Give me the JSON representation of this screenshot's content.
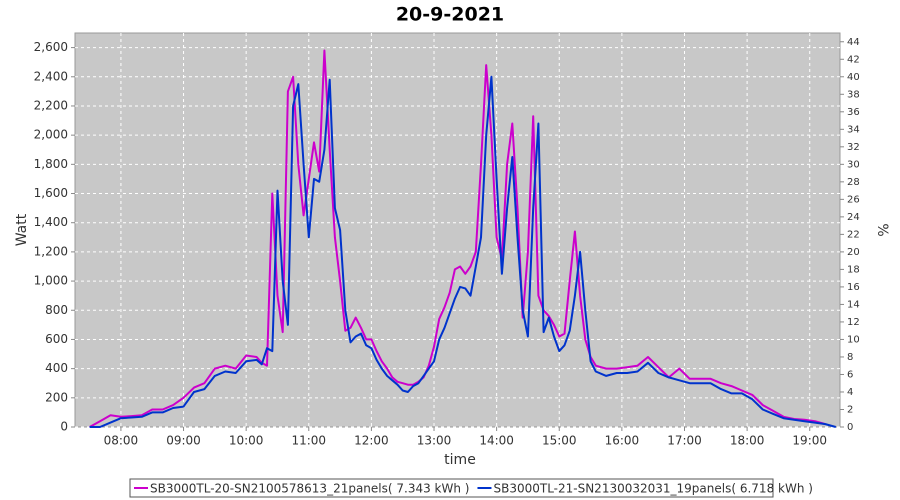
{
  "chart_data": {
    "type": "line",
    "title": "20-9-2021",
    "x_label": "time",
    "y_label": "Watt",
    "y2_label": "%",
    "x": [
      "07:30",
      "07:40",
      "07:50",
      "08:00",
      "08:10",
      "08:20",
      "08:30",
      "08:40",
      "08:50",
      "09:00",
      "09:10",
      "09:20",
      "09:30",
      "09:40",
      "09:50",
      "10:00",
      "10:10",
      "10:15",
      "10:20",
      "10:25",
      "10:30",
      "10:35",
      "10:40",
      "10:45",
      "10:50",
      "10:55",
      "11:00",
      "11:05",
      "11:10",
      "11:15",
      "11:20",
      "11:25",
      "11:30",
      "11:35",
      "11:40",
      "11:45",
      "11:50",
      "11:55",
      "12:00",
      "12:05",
      "12:10",
      "12:15",
      "12:20",
      "12:25",
      "12:30",
      "12:35",
      "12:40",
      "12:45",
      "12:50",
      "12:55",
      "13:00",
      "13:05",
      "13:10",
      "13:15",
      "13:20",
      "13:25",
      "13:30",
      "13:35",
      "13:40",
      "13:45",
      "13:50",
      "13:55",
      "14:00",
      "14:05",
      "14:10",
      "14:15",
      "14:20",
      "14:25",
      "14:30",
      "14:35",
      "14:40",
      "14:45",
      "14:50",
      "14:55",
      "15:00",
      "15:05",
      "15:10",
      "15:15",
      "15:20",
      "15:25",
      "15:30",
      "15:35",
      "15:45",
      "15:55",
      "16:05",
      "16:15",
      "16:25",
      "16:35",
      "16:45",
      "16:55",
      "17:05",
      "17:15",
      "17:25",
      "17:35",
      "17:45",
      "17:55",
      "18:05",
      "18:15",
      "18:25",
      "18:35",
      "18:45",
      "18:55",
      "19:05",
      "19:15",
      "19:25"
    ],
    "series": [
      {
        "name": "SB3000TL-20-SN2100578613_21panels( 7.343 kWh )",
        "color": "#cc00cc",
        "values": [
          0,
          40,
          80,
          70,
          75,
          80,
          120,
          120,
          150,
          200,
          270,
          300,
          400,
          420,
          400,
          490,
          480,
          440,
          420,
          1600,
          900,
          650,
          2300,
          2400,
          1800,
          1450,
          1700,
          1950,
          1750,
          2580,
          1900,
          1300,
          1000,
          660,
          680,
          750,
          680,
          600,
          600,
          520,
          450,
          400,
          340,
          310,
          300,
          290,
          290,
          310,
          340,
          420,
          550,
          740,
          820,
          920,
          1080,
          1100,
          1050,
          1100,
          1200,
          1800,
          2480,
          2000,
          1300,
          1150,
          1800,
          2080,
          1500,
          750,
          1200,
          2130,
          900,
          800,
          760,
          700,
          620,
          640,
          1000,
          1340,
          900,
          600,
          480,
          420,
          400,
          400,
          410,
          420,
          480,
          410,
          340,
          400,
          330,
          330,
          330,
          300,
          280,
          250,
          220,
          150,
          110,
          70,
          55,
          50,
          40,
          20,
          null
        ]
      },
      {
        "name": "SB3000TL-21-SN2130032031_19panels( 6.718 kWh )",
        "color": "#0033cc",
        "values": [
          0,
          0,
          30,
          60,
          65,
          70,
          100,
          100,
          130,
          140,
          240,
          260,
          350,
          380,
          370,
          450,
          460,
          430,
          540,
          520,
          1620,
          1000,
          700,
          2200,
          2350,
          1800,
          1300,
          1700,
          1680,
          1900,
          2380,
          1500,
          1350,
          800,
          580,
          620,
          640,
          560,
          540,
          460,
          400,
          350,
          320,
          290,
          250,
          240,
          280,
          300,
          350,
          400,
          450,
          600,
          680,
          780,
          880,
          960,
          950,
          900,
          1100,
          1300,
          2000,
          2400,
          1700,
          1050,
          1500,
          1850,
          1300,
          800,
          620,
          1500,
          2080,
          650,
          750,
          620,
          520,
          560,
          660,
          900,
          1200,
          800,
          450,
          380,
          350,
          370,
          370,
          380,
          440,
          370,
          340,
          320,
          300,
          300,
          300,
          260,
          230,
          230,
          190,
          120,
          90,
          60,
          50,
          40,
          30,
          20,
          0
        ]
      }
    ],
    "xlim": [
      "07:16",
      "19:29"
    ],
    "xticks": [
      "08:00",
      "09:00",
      "10:00",
      "11:00",
      "12:00",
      "13:00",
      "14:00",
      "15:00",
      "16:00",
      "17:00",
      "18:00",
      "19:00"
    ],
    "ylim": [
      0,
      2700
    ],
    "yticks": [
      0,
      200,
      400,
      600,
      800,
      {
        "value": 1000,
        "label": "1,000"
      },
      {
        "value": 1200,
        "label": "1,200"
      },
      {
        "value": 1400,
        "label": "1,400"
      },
      {
        "value": 1600,
        "label": "1,600"
      },
      {
        "value": 1800,
        "label": "1,800"
      },
      {
        "value": 2000,
        "label": "2,000"
      },
      {
        "value": 2200,
        "label": "2,200"
      },
      {
        "value": 2400,
        "label": "2,400"
      },
      {
        "value": 2600,
        "label": "2,600"
      }
    ],
    "y2lim": [
      0,
      45
    ],
    "y2ticks": [
      0,
      2,
      4,
      6,
      8,
      10,
      12,
      14,
      16,
      18,
      20,
      22,
      24,
      26,
      28,
      30,
      32,
      34,
      36,
      38,
      40,
      42,
      44
    ],
    "grid": true,
    "legend": "bottom"
  }
}
